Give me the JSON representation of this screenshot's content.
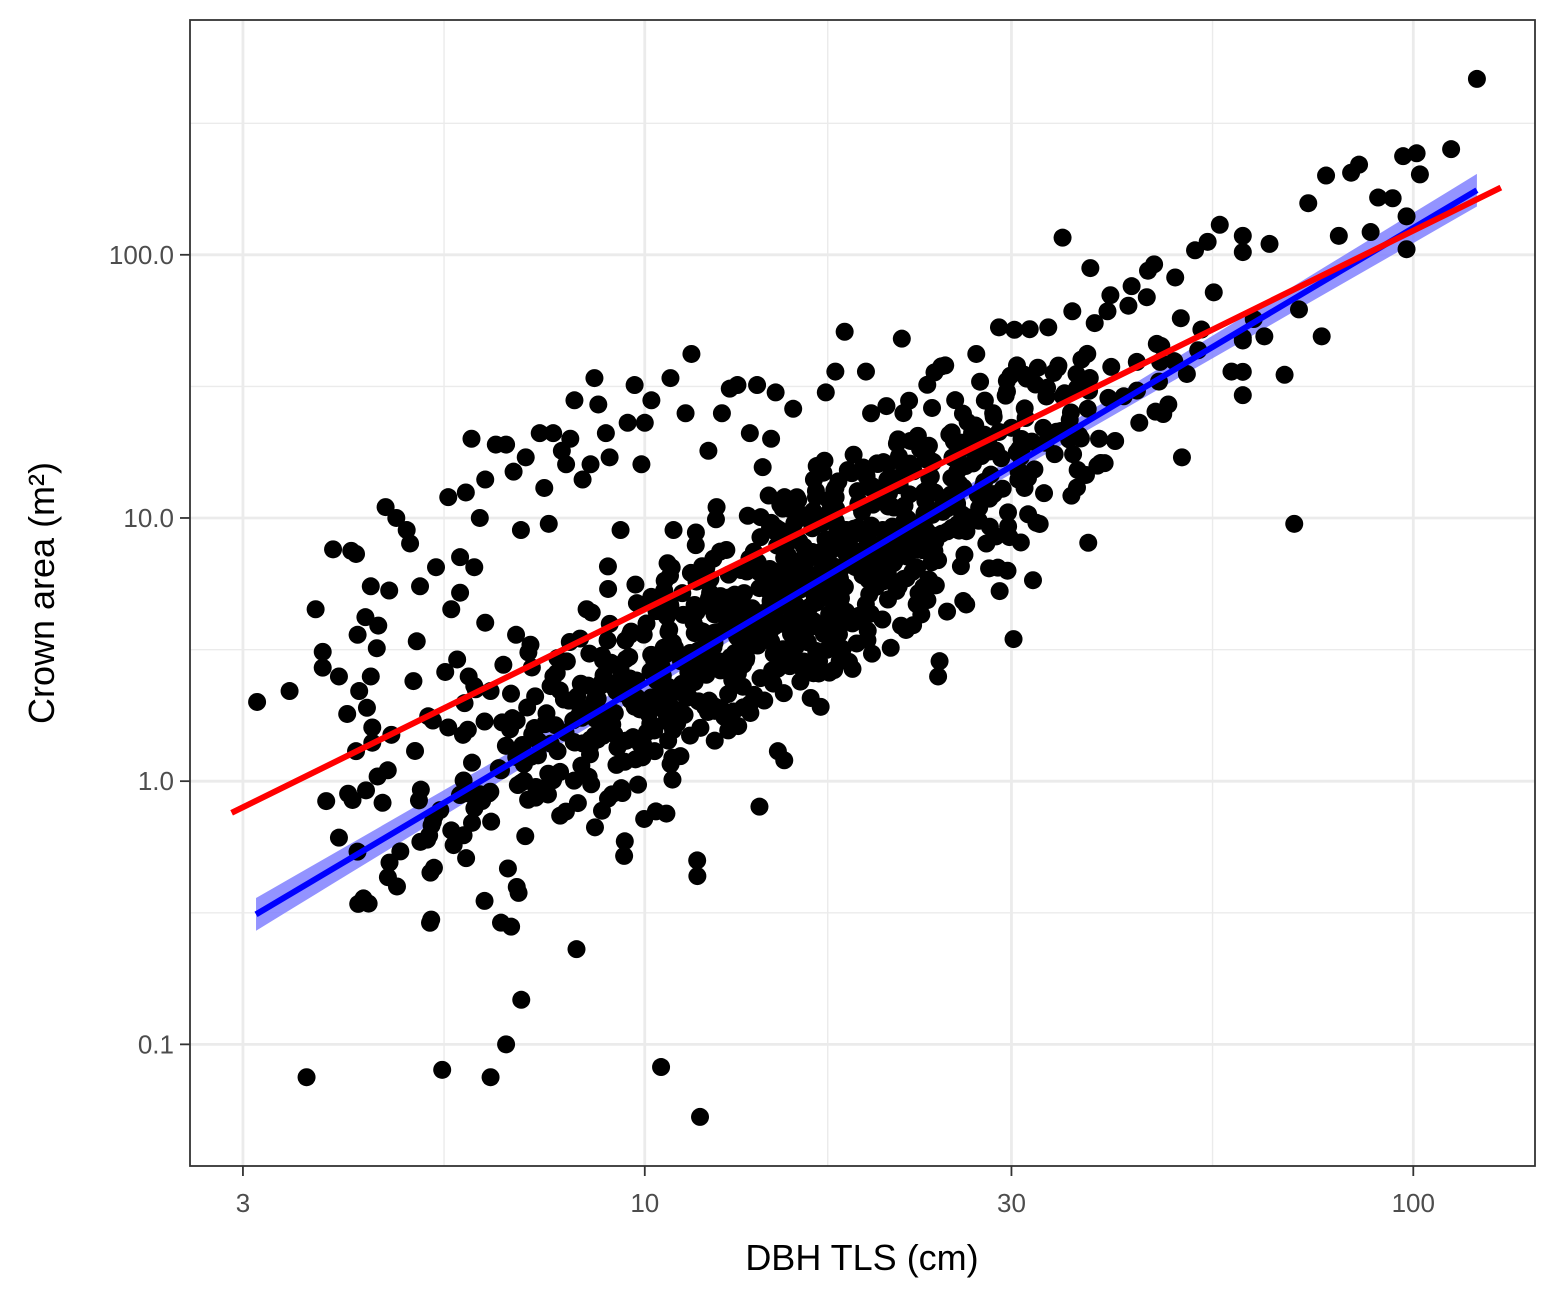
{
  "chart_data": {
    "type": "scatter",
    "xlabel": "DBH TLS (cm)",
    "ylabel": "Crown area (m²)",
    "x_scale": "log10",
    "y_scale": "log10",
    "xlim": [
      2.56,
      144
    ],
    "ylim": [
      0.0345,
      780
    ],
    "x_ticks": [
      {
        "value": 3,
        "label": "3"
      },
      {
        "value": 10,
        "label": "10"
      },
      {
        "value": 30,
        "label": "30"
      },
      {
        "value": 100,
        "label": "100"
      }
    ],
    "x_minor_ticks": [
      5.48,
      17.3,
      54.8
    ],
    "y_ticks": [
      {
        "value": 0.1,
        "label": "0.1"
      },
      {
        "value": 1,
        "label": "1.0"
      },
      {
        "value": 10,
        "label": "10.0"
      },
      {
        "value": 100,
        "label": "100.0"
      }
    ],
    "y_minor_ticks": [
      0.316,
      3.16,
      31.6,
      316
    ],
    "grid": true,
    "legend": "none",
    "colors": {
      "points": "#000000",
      "fit_line": "#0000ff",
      "fit_ribbon": "#8080ff",
      "reference_line": "#ff0000",
      "grid": "#ebebeb",
      "panel_border": "#333333"
    },
    "points": [
      [
        3.13,
        2.0
      ],
      [
        3.45,
        2.2
      ],
      [
        3.63,
        0.075
      ],
      [
        3.73,
        4.5
      ],
      [
        3.81,
        3.1
      ],
      [
        3.81,
        2.7
      ],
      [
        3.85,
        0.84
      ],
      [
        3.93,
        7.6
      ],
      [
        4.0,
        2.5
      ],
      [
        4.1,
        1.8
      ],
      [
        4.15,
        7.5
      ],
      [
        4.21,
        7.3
      ],
      [
        4.21,
        1.3
      ],
      [
        4.23,
        3.6
      ],
      [
        4.25,
        2.2
      ],
      [
        4.33,
        4.2
      ],
      [
        4.35,
        1.9
      ],
      [
        4.4,
        5.5
      ],
      [
        4.4,
        2.5
      ],
      [
        4.42,
        1.6
      ],
      [
        4.42,
        1.4
      ],
      [
        4.48,
        3.2
      ],
      [
        4.5,
        3.9
      ],
      [
        4.6,
        11.0
      ],
      [
        4.63,
        1.1
      ],
      [
        4.65,
        5.3
      ],
      [
        4.68,
        1.5
      ],
      [
        4.75,
        10.0
      ],
      [
        4.9,
        9.0
      ],
      [
        4.95,
        8.0
      ],
      [
        5.0,
        2.4
      ],
      [
        5.05,
        3.4
      ],
      [
        5.1,
        5.5
      ],
      [
        5.3,
        1.7
      ],
      [
        5.35,
        6.5
      ],
      [
        5.45,
        0.08
      ],
      [
        5.5,
        2.6
      ],
      [
        5.55,
        12.0
      ],
      [
        5.55,
        1.6
      ],
      [
        5.6,
        4.5
      ],
      [
        5.6,
        0.65
      ],
      [
        5.7,
        2.9
      ],
      [
        5.75,
        7.1
      ],
      [
        5.75,
        5.2
      ],
      [
        5.8,
        1.5
      ],
      [
        5.85,
        0.9
      ],
      [
        5.85,
        12.5
      ],
      [
        5.9,
        2.5
      ],
      [
        5.95,
        20.0
      ],
      [
        6.0,
        6.5
      ],
      [
        6.0,
        2.3
      ],
      [
        6.1,
        10.0
      ],
      [
        6.2,
        14.0
      ],
      [
        6.2,
        4.0
      ],
      [
        6.3,
        0.075
      ],
      [
        6.3,
        2.2
      ],
      [
        6.4,
        19.0
      ],
      [
        6.5,
        1.1
      ],
      [
        6.5,
        0.29
      ],
      [
        6.6,
        19.0
      ],
      [
        6.6,
        0.1
      ],
      [
        6.7,
        0.28
      ],
      [
        6.75,
        15.0
      ],
      [
        6.8,
        3.6
      ],
      [
        6.9,
        9.0
      ],
      [
        7.0,
        17.0
      ],
      [
        7.05,
        0.85
      ],
      [
        7.1,
        3.3
      ],
      [
        7.2,
        2.1
      ],
      [
        7.3,
        21.0
      ],
      [
        7.4,
        13.0
      ],
      [
        7.5,
        9.5
      ],
      [
        7.6,
        21.0
      ],
      [
        7.7,
        1.3
      ],
      [
        7.8,
        18.0
      ],
      [
        7.9,
        16.0
      ],
      [
        8.0,
        20.0
      ],
      [
        8.1,
        28.0
      ],
      [
        8.15,
        0.23
      ],
      [
        8.3,
        14.0
      ],
      [
        8.4,
        4.5
      ],
      [
        8.5,
        16.0
      ],
      [
        8.6,
        34.0
      ],
      [
        8.7,
        27.0
      ],
      [
        8.8,
        3.0
      ],
      [
        8.9,
        21.0
      ],
      [
        9.0,
        17.0
      ],
      [
        9.1,
        2.3
      ],
      [
        9.3,
        9.0
      ],
      [
        9.4,
        0.52
      ],
      [
        9.5,
        23.0
      ],
      [
        9.6,
        3.7
      ],
      [
        9.7,
        32.0
      ],
      [
        9.8,
        0.97
      ],
      [
        9.9,
        16.0
      ],
      [
        10.0,
        23.0
      ],
      [
        10.2,
        28.0
      ],
      [
        10.3,
        1.3
      ],
      [
        10.5,
        0.082
      ],
      [
        10.6,
        5.3
      ],
      [
        10.8,
        34.0
      ],
      [
        10.9,
        9.0
      ],
      [
        11.0,
        2.2
      ],
      [
        11.3,
        25.0
      ],
      [
        11.5,
        42.0
      ],
      [
        11.6,
        2.7
      ],
      [
        11.7,
        0.5
      ],
      [
        11.8,
        0.053
      ],
      [
        11.9,
        3.7
      ],
      [
        12.1,
        18.0
      ],
      [
        12.4,
        11.0
      ],
      [
        12.6,
        25.0
      ],
      [
        12.8,
        4.8
      ],
      [
        12.9,
        31.0
      ],
      [
        13.2,
        32.0
      ],
      [
        13.5,
        3.4
      ],
      [
        13.7,
        21.0
      ],
      [
        14.0,
        32.0
      ],
      [
        14.1,
        0.8
      ],
      [
        14.5,
        6.0
      ],
      [
        14.6,
        20.0
      ],
      [
        14.8,
        30.0
      ],
      [
        14.9,
        1.3
      ],
      [
        15.2,
        12.0
      ],
      [
        15.6,
        26.0
      ],
      [
        16.0,
        2.7
      ],
      [
        16.1,
        6.0
      ],
      [
        16.4,
        4.6
      ],
      [
        16.6,
        14.0
      ],
      [
        17.2,
        30.0
      ],
      [
        17.7,
        36.0
      ],
      [
        18.2,
        51.0
      ],
      [
        18.3,
        9.0
      ],
      [
        18.8,
        6.5
      ],
      [
        19.4,
        36.0
      ],
      [
        19.7,
        25.0
      ],
      [
        20.4,
        9.0
      ],
      [
        20.7,
        16.0
      ],
      [
        21.4,
        5.5
      ],
      [
        21.6,
        48.0
      ],
      [
        21.9,
        5.9
      ],
      [
        22.6,
        8.5
      ],
      [
        22.9,
        4.3
      ],
      [
        23.4,
        13.0
      ],
      [
        23.8,
        7.5
      ],
      [
        24.6,
        38.0
      ],
      [
        25.5,
        15.0
      ],
      [
        26.0,
        9.3
      ],
      [
        27.0,
        42.0
      ],
      [
        28.0,
        20.0
      ],
      [
        28.4,
        25.0
      ],
      [
        28.9,
        53.0
      ],
      [
        30.0,
        22.0
      ],
      [
        30.5,
        38.0
      ],
      [
        31.2,
        13.0
      ],
      [
        32.0,
        5.8
      ],
      [
        33.0,
        22.0
      ],
      [
        33.5,
        53.0
      ],
      [
        35.0,
        29.0
      ],
      [
        36.0,
        61.0
      ],
      [
        37.0,
        40.0
      ],
      [
        38.0,
        89.0
      ],
      [
        38.5,
        55.0
      ],
      [
        39.0,
        20.0
      ],
      [
        40.0,
        61.0
      ],
      [
        42.0,
        29.0
      ],
      [
        43.0,
        76.0
      ],
      [
        44.0,
        23.0
      ],
      [
        45.0,
        69.0
      ],
      [
        46.0,
        92.0
      ],
      [
        47.0,
        45.0
      ],
      [
        48.0,
        27.0
      ],
      [
        49.0,
        82.0
      ],
      [
        50.0,
        17.0
      ],
      [
        52.0,
        104.0
      ],
      [
        53.0,
        52.0
      ],
      [
        54.0,
        112.0
      ],
      [
        55.0,
        72.0
      ],
      [
        56.0,
        130.0
      ],
      [
        58.0,
        36.0
      ],
      [
        60.0,
        118.0
      ],
      [
        62.0,
        57.0
      ],
      [
        64.0,
        49.0
      ],
      [
        65.0,
        110.0
      ],
      [
        68.0,
        35.0
      ],
      [
        70.0,
        9.5
      ],
      [
        71.0,
        62.0
      ],
      [
        73.0,
        157.0
      ],
      [
        76.0,
        49.0
      ],
      [
        77.0,
        200.0
      ],
      [
        80.0,
        118.0
      ],
      [
        83.0,
        205.0
      ],
      [
        85.0,
        220.0
      ],
      [
        88.0,
        122.0
      ],
      [
        90.0,
        165.0
      ],
      [
        94.0,
        164.0
      ],
      [
        97.0,
        237.0
      ],
      [
        98.0,
        105.0
      ],
      [
        98.0,
        140.0
      ],
      [
        101.0,
        243.0
      ],
      [
        102.0,
        202.0
      ],
      [
        112.0,
        252.0
      ],
      [
        121.0,
        466.0
      ]
    ],
    "dense_cloud": {
      "count": 900,
      "seed": 12345,
      "x_log_mean": 1.18,
      "x_log_sd": 0.22,
      "x_range": [
        4.0,
        60.0
      ],
      "fit_intercept": -1.36,
      "fit_slope": 1.73,
      "residual_sd": 0.22
    },
    "fit_line": {
      "name": "",
      "x_range": [
        3.12,
        121.0
      ],
      "intercept": -1.362,
      "slope": 1.732,
      "ribbon_halfwidth_log": [
        0.062,
        0.018,
        0.062
      ]
    },
    "reference_line": {
      "name": "",
      "x_range": [
        2.9,
        130.0
      ],
      "intercept": -0.7856,
      "slope": 1.4386
    }
  }
}
